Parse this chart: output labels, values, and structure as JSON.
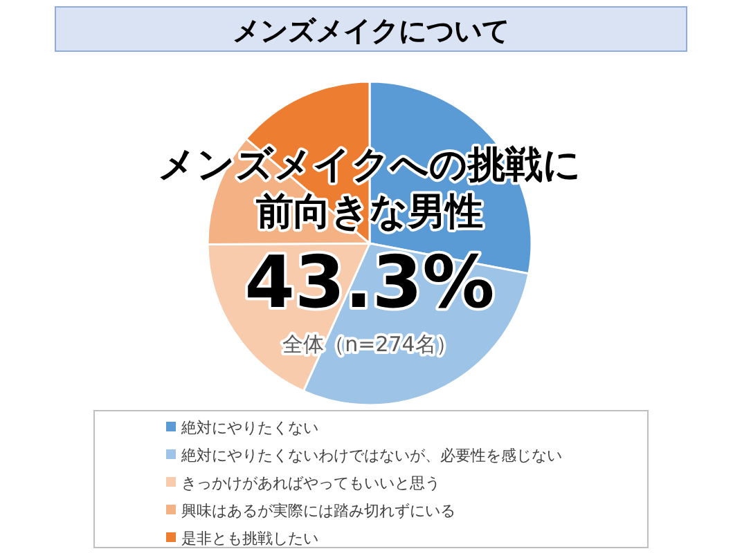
{
  "chart_data": {
    "type": "pie",
    "title": "メンズメイクについて",
    "categories": [
      "絶対にやりたくない",
      "絶対にやりたくないわけではないが、必要性を感じない",
      "きっかけがあればやってもいいと思う",
      "興味はあるが実際には踏み切れずにいる",
      "是非とも挑戦したい"
    ],
    "values": [
      28.0,
      28.7,
      18.2,
      11.3,
      13.8
    ],
    "colors": [
      "#5b9bd5",
      "#9dc3e6",
      "#f8cbad",
      "#f4b183",
      "#ed7d31"
    ],
    "annotations": [
      "メンズメイクへの挑戦に",
      "前向きな男性",
      "43.3%",
      "全体（n=274名）"
    ],
    "legend": "bottom"
  }
}
